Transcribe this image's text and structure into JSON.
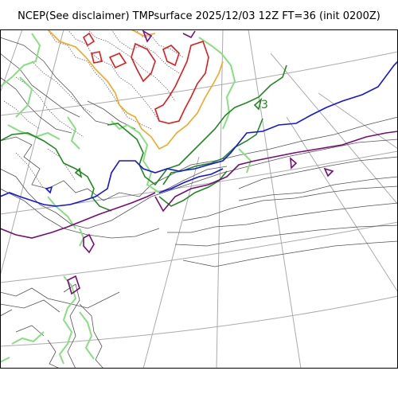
{
  "title": "NCEP(See disclaimer) TMPsurface 2025/12/03 12Z FT=36 (init 0200Z)",
  "contour_labels": [
    {
      "text": "3",
      "color": "#1a8a1a"
    }
  ],
  "colors": {
    "grid": "#aaaaaa",
    "coast": "#444444",
    "frame": "#000000",
    "red": "#e21b1b",
    "orange": "#f5a623",
    "light_green": "#86e07f",
    "green": "#1f8a1f",
    "blue": "#1414e6",
    "purple": "#7a0a7a"
  }
}
